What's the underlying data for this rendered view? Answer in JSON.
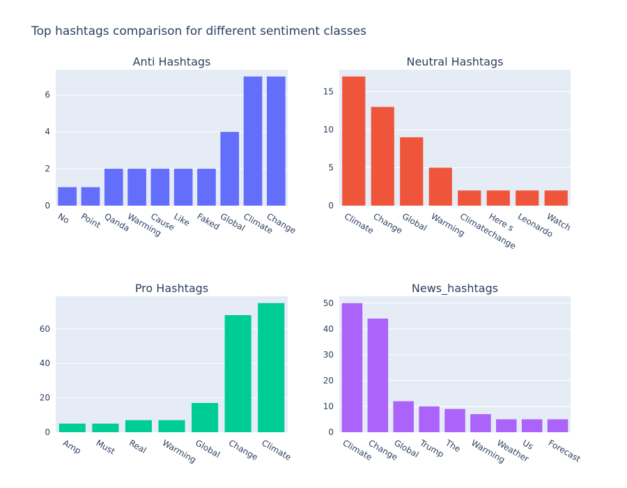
{
  "figure": {
    "title": "Top hashtags comparison for different sentiment classes",
    "background": "#ffffff",
    "plot_background": "#e5ecf6",
    "grid_color": "#ffffff",
    "text_color": "#2a3f5f"
  },
  "chart_data": [
    {
      "type": "bar",
      "title": "Anti Hashtags",
      "categories": [
        "No",
        "Point",
        "Qanda",
        "Warming",
        "Cause",
        "Like",
        "Faked",
        "Global",
        "Climate",
        "Change"
      ],
      "values": [
        1,
        1,
        2,
        2,
        2,
        2,
        2,
        4,
        7,
        7
      ],
      "color": "#636efa",
      "ylim": [
        0,
        7.368
      ],
      "yticks": [
        0,
        2,
        4,
        6
      ],
      "grid": true
    },
    {
      "type": "bar",
      "title": "Neutral Hashtags",
      "categories": [
        "Climate",
        "Change",
        "Global",
        "Warming",
        "Climatechange",
        "Here s",
        "Leonardo",
        "Watch"
      ],
      "values": [
        17,
        13,
        9,
        5,
        2,
        2,
        2,
        2
      ],
      "color": "#ef553b",
      "ylim": [
        0,
        17.895
      ],
      "yticks": [
        0,
        5,
        10,
        15
      ],
      "grid": true
    },
    {
      "type": "bar",
      "title": "Pro Hashtags",
      "categories": [
        "Amp",
        "Must",
        "Real",
        "Warming",
        "Global",
        "Change",
        "Climate"
      ],
      "values": [
        5,
        5,
        7,
        7,
        17,
        68,
        75
      ],
      "color": "#00cc96",
      "ylim": [
        0,
        78.947
      ],
      "yticks": [
        0,
        20,
        40,
        60
      ],
      "grid": true
    },
    {
      "type": "bar",
      "title": "News_hashtags",
      "categories": [
        "Climate",
        "Change",
        "Global",
        "Trump",
        "The",
        "Warming",
        "Weather",
        "Us",
        "Forecast"
      ],
      "values": [
        50,
        44,
        12,
        10,
        9,
        7,
        5,
        5,
        5
      ],
      "color": "#ab63fa",
      "ylim": [
        0,
        52.632
      ],
      "yticks": [
        0,
        10,
        20,
        30,
        40,
        50
      ],
      "grid": true
    }
  ]
}
